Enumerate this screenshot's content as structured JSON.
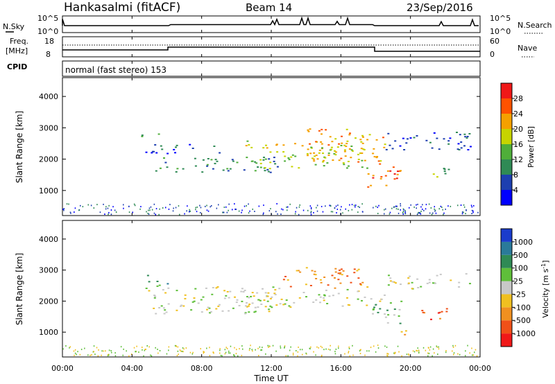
{
  "header": {
    "station": "Hankasalmi (fitACF)",
    "beam": "Beam 14",
    "date": "23/Sep/2016"
  },
  "status_panels": {
    "nsky_label": "N.Sky",
    "nsky_tick_top": "10^5",
    "nsky_tick_bottom": "10^0",
    "nsearch_label": "N.Search",
    "nsearch_tick_top": "10^5",
    "nsearch_tick_bottom": "10^0",
    "freq_label_line1": "Freq.",
    "freq_label_line2": "[MHz]",
    "freq_tick_top": "18",
    "freq_tick_bottom": "8",
    "nave_label": "Nave",
    "nave_tick_top": "60",
    "nave_tick_bottom": "0",
    "cpid_label": "CPID",
    "cpid_text": "normal (fast stereo) 153"
  },
  "chart_data": [
    {
      "type": "heatmap",
      "name": "power",
      "xlabel": "Time UT",
      "ylabel": "Slant Range [km]",
      "ylim": [
        200,
        4600
      ],
      "xlim": [
        0,
        24
      ],
      "yticks": [
        1000,
        2000,
        3000,
        4000
      ],
      "colorbar": {
        "label": "Power [dB]",
        "ticks": [
          "4",
          "8",
          "12",
          "16",
          "20",
          "24",
          "28"
        ],
        "colors": [
          "#0000ff",
          "#1d3fb0",
          "#2f8a55",
          "#4fae3a",
          "#c7d400",
          "#f5a000",
          "#ff5200",
          "#f01818"
        ]
      },
      "echo_regions": [
        {
          "t0": 4.6,
          "t1": 9.0,
          "r0": 2200,
          "r1": 2500,
          "level": 1
        },
        {
          "t0": 5.0,
          "t1": 12.5,
          "r0": 1600,
          "r1": 2100,
          "level": 2
        },
        {
          "t0": 10.5,
          "t1": 17.5,
          "r0": 1700,
          "r1": 2600,
          "level": 4
        },
        {
          "t0": 14.0,
          "t1": 18.5,
          "r0": 1900,
          "r1": 3000,
          "level": 5
        },
        {
          "t0": 17.5,
          "t1": 19.5,
          "r0": 1100,
          "r1": 1900,
          "level": 6
        },
        {
          "t0": 18.5,
          "t1": 23.5,
          "r0": 2300,
          "r1": 2900,
          "level": 1
        },
        {
          "t0": 21.0,
          "t1": 22.3,
          "r0": 1400,
          "r1": 1800,
          "level": 3
        },
        {
          "t0": 4.5,
          "t1": 5.5,
          "r0": 2700,
          "r1": 2900,
          "level": 3
        }
      ]
    },
    {
      "type": "heatmap",
      "name": "velocity",
      "xlabel": "Time UT",
      "ylabel": "Slant Range [km]",
      "ylim": [
        200,
        4600
      ],
      "xlim": [
        0,
        24
      ],
      "yticks": [
        1000,
        2000,
        3000,
        4000
      ],
      "xticks": [
        "00:00",
        "04:00",
        "08:00",
        "12:00",
        "16:00",
        "20:00",
        "00:00"
      ],
      "colorbar": {
        "label": "Velocity [m s^-1]",
        "ticks": [
          "1000",
          "500",
          "100",
          "25",
          "-25",
          "-100",
          "-500",
          "-1000"
        ],
        "colors": [
          "#1a3ccc",
          "#2a7a9a",
          "#2f8a55",
          "#5fbf3a",
          "#c8c8c8",
          "#f0c020",
          "#f09020",
          "#f05018",
          "#f01818"
        ]
      },
      "echo_regions": [
        {
          "t0": 4.6,
          "t1": 12.5,
          "r0": 1600,
          "r1": 2500,
          "level": 4
        },
        {
          "t0": 10.5,
          "t1": 18.5,
          "r0": 1800,
          "r1": 2400,
          "level": 4
        },
        {
          "t0": 4.8,
          "t1": 6.0,
          "r0": 2500,
          "r1": 2900,
          "level": 2
        },
        {
          "t0": 12.5,
          "t1": 17.5,
          "r0": 2400,
          "r1": 3100,
          "level": 6
        },
        {
          "t0": 17.5,
          "t1": 19.5,
          "r0": 1300,
          "r1": 2100,
          "level": 3
        },
        {
          "t0": 18.5,
          "t1": 23.5,
          "r0": 2400,
          "r1": 2900,
          "level": 4
        },
        {
          "t0": 20.5,
          "t1": 22.5,
          "r0": 1400,
          "r1": 1800,
          "level": 7
        },
        {
          "t0": 19.0,
          "t1": 20.0,
          "r0": 900,
          "r1": 1100,
          "level": 6
        }
      ]
    }
  ]
}
